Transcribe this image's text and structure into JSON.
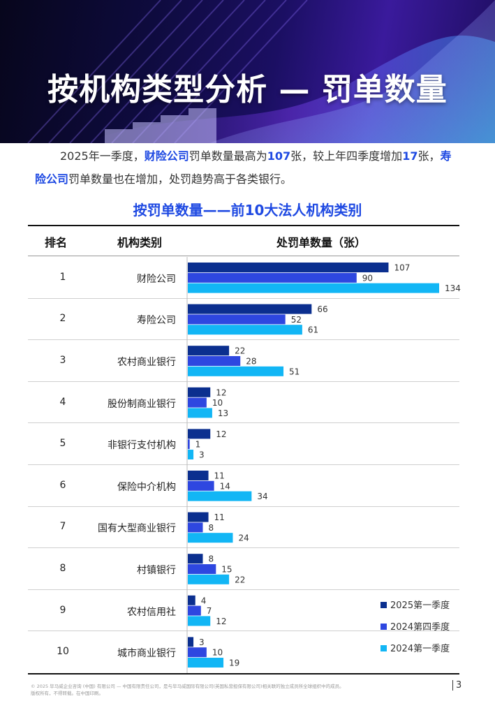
{
  "header": {
    "title": "按机构类型分析 — 罚单数量"
  },
  "intro": {
    "t1": "2025年一季度，",
    "h1": "财险公司",
    "t2": "罚单数量最高为",
    "h2": "107",
    "t3": "张，较上年四季度增加",
    "h3": "17",
    "t4": "张，",
    "h4": "寿险公司",
    "t5": "罚单数量也在增加，处罚趋势高于各类银行。"
  },
  "table": {
    "title": "按罚单数量——前10大法人机构类别",
    "col_rank": "排名",
    "col_cat": "机构类别",
    "col_value": "处罚单数量（张）"
  },
  "chart_data": {
    "type": "bar",
    "orientation": "horizontal",
    "title": "按罚单数量——前10大法人机构类别",
    "ylabel": "处罚单数量（张）",
    "ranks": [
      "1",
      "2",
      "3",
      "4",
      "5",
      "6",
      "7",
      "8",
      "9",
      "10"
    ],
    "categories": [
      "财险公司",
      "寿险公司",
      "农村商业银行",
      "股份制商业银行",
      "非银行支付机构",
      "保险中介机构",
      "国有大型商业银行",
      "村镇银行",
      "农村信用社",
      "城市商业银行"
    ],
    "series": [
      {
        "name": "2025第一季度",
        "color": "#0b2f8f",
        "values": [
          107,
          66,
          22,
          12,
          12,
          11,
          11,
          8,
          4,
          3
        ]
      },
      {
        "name": "2024第四季度",
        "color": "#2e47e0",
        "values": [
          90,
          52,
          28,
          10,
          1,
          14,
          8,
          15,
          7,
          10
        ]
      },
      {
        "name": "2024第一季度",
        "color": "#12b6f5",
        "values": [
          134,
          61,
          51,
          13,
          3,
          34,
          24,
          22,
          12,
          19
        ]
      }
    ],
    "legend_position": "bottom-right",
    "grid": false
  },
  "footer": {
    "line1": "© 2025 毕马威企业咨询 (中国) 有限公司 — 中国有限责任公司，是与毕马威国际有限公司(英国私营担保有限公司)相关联的独立成员所全球组织中的成员。",
    "line2": "版权所有，不得转载。在中国印刷。",
    "page": "3"
  }
}
